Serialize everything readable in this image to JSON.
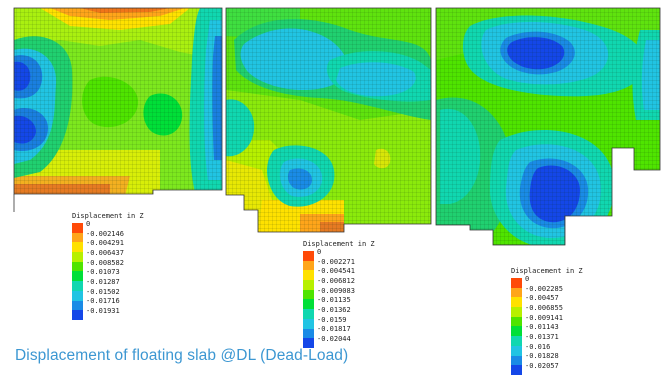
{
  "caption": "Displacement of floating slab @DL (Dead-Load)",
  "legends": [
    {
      "title": "Displacement in Z",
      "items": [
        {
          "label": "0",
          "color": "#ff4a08"
        },
        {
          "label": "-0.002146",
          "color": "#ffa51a"
        },
        {
          "label": "-0.004291",
          "color": "#ffe100"
        },
        {
          "label": "-0.006437",
          "color": "#b7f000"
        },
        {
          "label": "-0.008582",
          "color": "#4fe400"
        },
        {
          "label": "-0.01073",
          "color": "#00df38"
        },
        {
          "label": "-0.01287",
          "color": "#10d7b0"
        },
        {
          "label": "-0.01502",
          "color": "#21c4e3"
        },
        {
          "label": "-0.01716",
          "color": "#1a8be6"
        },
        {
          "label": "-0.01931",
          "color": "#1447e8"
        }
      ]
    },
    {
      "title": "Displacement in Z",
      "items": [
        {
          "label": "0",
          "color": "#ff4a08"
        },
        {
          "label": "-0.002271",
          "color": "#ffa51a"
        },
        {
          "label": "-0.004541",
          "color": "#ffe100"
        },
        {
          "label": "-0.006812",
          "color": "#b7f000"
        },
        {
          "label": "-0.009083",
          "color": "#4fe400"
        },
        {
          "label": "-0.01135",
          "color": "#00df38"
        },
        {
          "label": "-0.01362",
          "color": "#10d7b0"
        },
        {
          "label": "-0.0159",
          "color": "#21c4e3"
        },
        {
          "label": "-0.01817",
          "color": "#1a8be6"
        },
        {
          "label": "-0.02044",
          "color": "#1447e8"
        }
      ]
    },
    {
      "title": "Displacement in Z",
      "items": [
        {
          "label": "0",
          "color": "#ff4a08"
        },
        {
          "label": "-0.002285",
          "color": "#ffa51a"
        },
        {
          "label": "-0.00457",
          "color": "#ffe100"
        },
        {
          "label": "-0.006855",
          "color": "#b7f000"
        },
        {
          "label": "-0.009141",
          "color": "#4fe400"
        },
        {
          "label": "-0.01143",
          "color": "#00df38"
        },
        {
          "label": "-0.01371",
          "color": "#10d7b0"
        },
        {
          "label": "-0.016",
          "color": "#21c4e3"
        },
        {
          "label": "-0.01828",
          "color": "#1a8be6"
        },
        {
          "label": "-0.02057",
          "color": "#1447e8"
        }
      ]
    }
  ]
}
